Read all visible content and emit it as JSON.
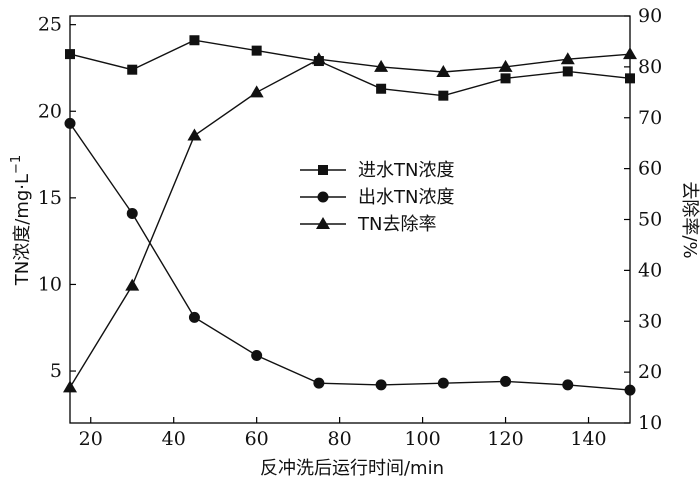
{
  "chart_data": {
    "type": "line",
    "xlabel": "反冲洗后运行时间/min",
    "ylabel_left_main": "TN浓度/mg·L",
    "ylabel_left_sup": "−1",
    "ylabel_right": "去除率/%",
    "xlim": [
      15,
      150
    ],
    "ylim_left": [
      2,
      25.5
    ],
    "ylim_right": [
      10,
      90
    ],
    "x_ticks": [
      20,
      40,
      60,
      80,
      100,
      120,
      140
    ],
    "y_left_ticks": [
      5,
      10,
      15,
      20,
      25
    ],
    "y_right_ticks": [
      10,
      20,
      30,
      40,
      50,
      60,
      70,
      80,
      90
    ],
    "legend_position": "center",
    "series": [
      {
        "name": "进水TN浓度",
        "axis": "left",
        "marker": "square",
        "x": [
          15,
          30,
          45,
          60,
          75,
          90,
          105,
          120,
          135,
          150
        ],
        "y": [
          23.3,
          22.4,
          24.1,
          23.5,
          22.9,
          21.3,
          20.9,
          21.9,
          22.3,
          21.9
        ]
      },
      {
        "name": "出水TN浓度",
        "axis": "left",
        "marker": "circle",
        "x": [
          15,
          30,
          45,
          60,
          75,
          90,
          105,
          120,
          135,
          150
        ],
        "y": [
          19.3,
          14.1,
          8.1,
          5.9,
          4.3,
          4.2,
          4.3,
          4.4,
          4.2,
          3.9
        ]
      },
      {
        "name": "TN去除率",
        "axis": "right",
        "marker": "triangle",
        "x": [
          15,
          30,
          45,
          60,
          75,
          90,
          105,
          120,
          135,
          150
        ],
        "y": [
          17,
          37,
          66.5,
          75,
          81.5,
          80,
          79,
          80,
          81.5,
          82.5
        ]
      }
    ]
  }
}
